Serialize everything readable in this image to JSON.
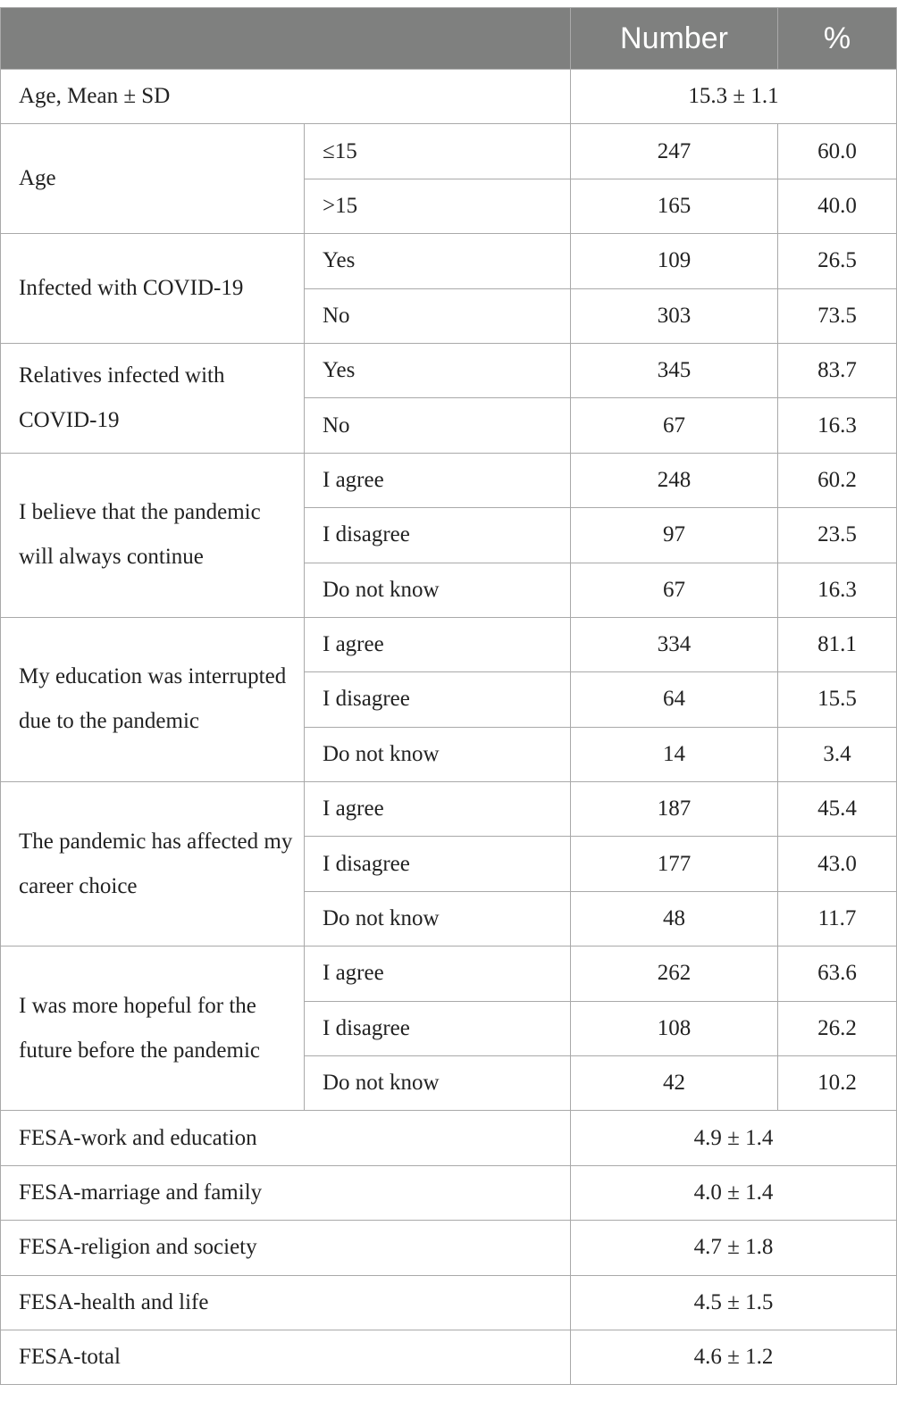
{
  "header": {
    "col_number": "Number",
    "col_percent": "%"
  },
  "age_mean": {
    "label": "Age, Mean ± SD",
    "value": "15.3 ± 1.1"
  },
  "groups": [
    {
      "label": "Age",
      "rows": [
        {
          "level": "≤15",
          "number": "247",
          "percent": "60.0"
        },
        {
          "level": ">15",
          "number": "165",
          "percent": "40.0"
        }
      ]
    },
    {
      "label": "Infected with COVID-19",
      "rows": [
        {
          "level": "Yes",
          "number": "109",
          "percent": "26.5"
        },
        {
          "level": "No",
          "number": "303",
          "percent": "73.5"
        }
      ]
    },
    {
      "label": "Relatives infected with COVID-19",
      "rows": [
        {
          "level": "Yes",
          "number": "345",
          "percent": "83.7"
        },
        {
          "level": "No",
          "number": "67",
          "percent": "16.3"
        }
      ]
    },
    {
      "label": "I believe that the pandemic will always continue",
      "rows": [
        {
          "level": "I agree",
          "number": "248",
          "percent": "60.2"
        },
        {
          "level": "I disagree",
          "number": "97",
          "percent": "23.5"
        },
        {
          "level": "Do not know",
          "number": "67",
          "percent": "16.3"
        }
      ]
    },
    {
      "label": "My education was interrupted due to the pandemic",
      "rows": [
        {
          "level": "I agree",
          "number": "334",
          "percent": "81.1"
        },
        {
          "level": "I disagree",
          "number": "64",
          "percent": "15.5"
        },
        {
          "level": "Do not know",
          "number": "14",
          "percent": "3.4"
        }
      ]
    },
    {
      "label": "The pandemic has affected my career choice",
      "rows": [
        {
          "level": "I agree",
          "number": "187",
          "percent": "45.4"
        },
        {
          "level": "I disagree",
          "number": "177",
          "percent": "43.0"
        },
        {
          "level": "Do not know",
          "number": "48",
          "percent": "11.7"
        }
      ]
    },
    {
      "label": "I was more hopeful for the future before the pandemic",
      "rows": [
        {
          "level": "I agree",
          "number": "262",
          "percent": "63.6"
        },
        {
          "level": "I disagree",
          "number": "108",
          "percent": "26.2"
        },
        {
          "level": "Do not know",
          "number": "42",
          "percent": "10.2"
        }
      ]
    }
  ],
  "fesa": [
    {
      "label": "FESA-work and education",
      "value": "4.9 ± 1.4"
    },
    {
      "label": "FESA-marriage and family",
      "value": "4.0 ± 1.4"
    },
    {
      "label": "FESA-religion and society",
      "value": "4.7 ± 1.8"
    },
    {
      "label": "FESA-health and life",
      "value": "4.5 ± 1.5"
    },
    {
      "label": "FESA-total",
      "value": "4.6 ± 1.2"
    }
  ]
}
